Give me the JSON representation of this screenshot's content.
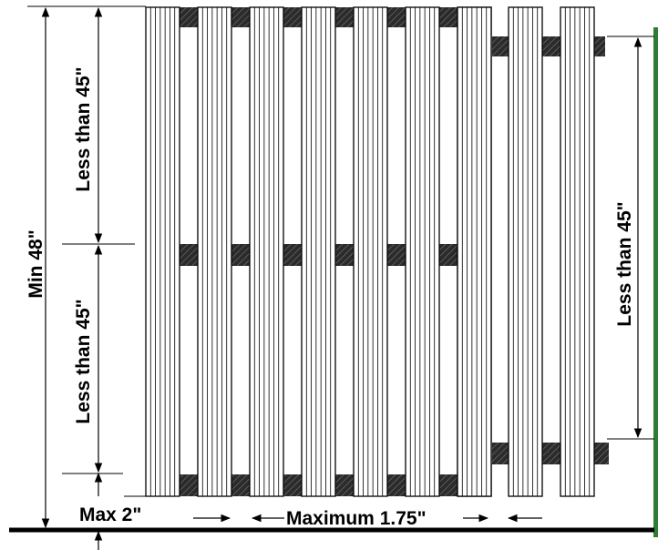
{
  "labels": {
    "min_height": "Min 48\"",
    "top_spacing": "Less than 45\"",
    "middle_spacing": "Less than 45\"",
    "right_spacing": "Less than 45\"",
    "bottom_gap": "Max 2\"",
    "picket_gap": "Maximum 1.75\""
  },
  "colors": {
    "ground": "#000000",
    "green_edge": "#2e7d32",
    "rail": "#222222"
  }
}
